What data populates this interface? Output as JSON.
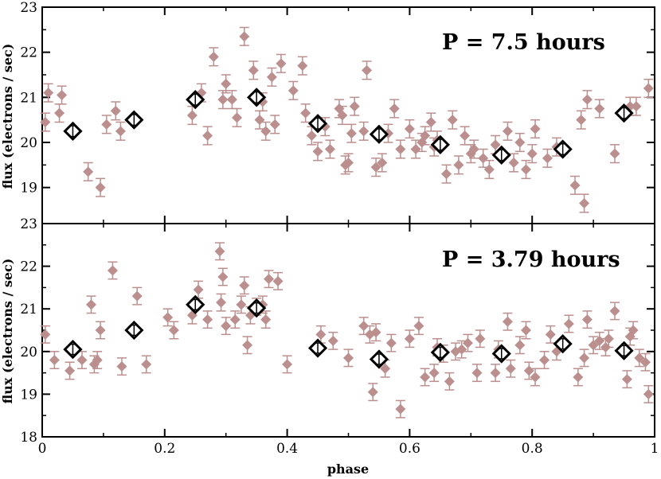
{
  "chart_data": [
    {
      "type": "scatter",
      "title": "P = 7.5 hours",
      "xlabel": "",
      "ylabel": "flux (electrons / sec)",
      "xlim": [
        0,
        1
      ],
      "ylim": [
        18.2,
        23
      ],
      "yticks": [
        19,
        20,
        21,
        22,
        23
      ],
      "xticks": [
        0,
        0.2,
        0.4,
        0.6,
        0.8,
        1
      ],
      "series": [
        {
          "name": "individual measurements",
          "color": "#bc8f8f",
          "marker": "filled-diamond",
          "x": [
            0.005,
            0.01,
            0.028,
            0.032,
            0.075,
            0.095,
            0.105,
            0.12,
            0.128,
            0.245,
            0.26,
            0.27,
            0.28,
            0.295,
            0.3,
            0.31,
            0.318,
            0.33,
            0.345,
            0.355,
            0.36,
            0.365,
            0.375,
            0.38,
            0.39,
            0.41,
            0.425,
            0.43,
            0.44,
            0.45,
            0.462,
            0.47,
            0.485,
            0.49,
            0.495,
            0.5,
            0.505,
            0.51,
            0.525,
            0.53,
            0.545,
            0.555,
            0.565,
            0.575,
            0.585,
            0.6,
            0.61,
            0.62,
            0.625,
            0.635,
            0.64,
            0.645,
            0.66,
            0.67,
            0.68,
            0.69,
            0.7,
            0.705,
            0.72,
            0.73,
            0.74,
            0.76,
            0.77,
            0.78,
            0.79,
            0.8,
            0.805,
            0.825,
            0.84,
            0.87,
            0.88,
            0.885,
            0.89,
            0.91,
            0.935,
            0.96,
            0.97,
            0.99
          ],
          "y": [
            20.45,
            21.1,
            20.65,
            21.05,
            19.35,
            19.0,
            20.4,
            20.7,
            20.25,
            20.6,
            21.1,
            20.15,
            21.9,
            20.95,
            21.3,
            20.95,
            20.55,
            22.35,
            21.6,
            20.5,
            20.9,
            20.25,
            21.45,
            20.4,
            21.75,
            21.15,
            21.7,
            20.65,
            20.15,
            19.8,
            20.35,
            19.85,
            20.75,
            20.6,
            19.5,
            19.55,
            20.2,
            20.8,
            20.25,
            21.6,
            19.45,
            19.55,
            20.2,
            20.75,
            19.85,
            20.3,
            19.85,
            20.0,
            20.15,
            20.45,
            19.9,
            20.05,
            19.3,
            20.5,
            19.5,
            20.15,
            19.75,
            19.85,
            19.65,
            19.4,
            19.95,
            20.25,
            19.55,
            20.0,
            19.4,
            19.75,
            20.3,
            19.65,
            19.9,
            19.05,
            20.5,
            18.65,
            20.95,
            20.75,
            19.75,
            20.8,
            20.8,
            21.2
          ]
        },
        {
          "name": "binned averages",
          "color": "#000000",
          "marker": "open-diamond",
          "x": [
            0.05,
            0.15,
            0.25,
            0.35,
            0.45,
            0.55,
            0.65,
            0.75,
            0.85,
            0.95
          ],
          "y": [
            20.25,
            20.5,
            20.95,
            21.0,
            20.42,
            20.18,
            19.95,
            19.72,
            19.85,
            20.65
          ]
        }
      ]
    },
    {
      "type": "scatter",
      "title": "P = 3.79 hours",
      "xlabel": "phase",
      "ylabel": "flux (electrons / sec)",
      "xlim": [
        0,
        1
      ],
      "ylim": [
        18,
        23
      ],
      "yticks": [
        18,
        19,
        20,
        21,
        22,
        23
      ],
      "xticks": [
        0,
        0.2,
        0.4,
        0.6,
        0.8,
        1
      ],
      "xticklabels": [
        "0",
        "0.2",
        "0.4",
        "0.6",
        "0.8",
        "1"
      ],
      "series": [
        {
          "name": "individual measurements",
          "color": "#bc8f8f",
          "marker": "filled-diamond",
          "x": [
            0.005,
            0.02,
            0.045,
            0.065,
            0.08,
            0.085,
            0.09,
            0.095,
            0.115,
            0.13,
            0.155,
            0.17,
            0.205,
            0.215,
            0.245,
            0.255,
            0.27,
            0.29,
            0.292,
            0.295,
            0.3,
            0.315,
            0.325,
            0.33,
            0.335,
            0.34,
            0.35,
            0.36,
            0.365,
            0.37,
            0.385,
            0.4,
            0.455,
            0.475,
            0.5,
            0.525,
            0.535,
            0.54,
            0.545,
            0.56,
            0.57,
            0.585,
            0.6,
            0.615,
            0.625,
            0.64,
            0.645,
            0.655,
            0.665,
            0.675,
            0.685,
            0.695,
            0.71,
            0.715,
            0.74,
            0.745,
            0.76,
            0.765,
            0.78,
            0.79,
            0.795,
            0.805,
            0.82,
            0.83,
            0.84,
            0.86,
            0.875,
            0.885,
            0.89,
            0.9,
            0.91,
            0.92,
            0.925,
            0.935,
            0.955,
            0.96,
            0.965,
            0.975,
            0.985,
            0.99
          ],
          "y": [
            20.4,
            19.8,
            19.55,
            19.8,
            21.1,
            19.7,
            19.8,
            20.5,
            21.9,
            19.65,
            21.3,
            19.7,
            20.8,
            20.5,
            20.85,
            21.45,
            20.75,
            22.35,
            21.15,
            21.75,
            20.6,
            20.75,
            21.1,
            21.55,
            20.15,
            20.85,
            21.05,
            21.1,
            20.75,
            21.7,
            21.65,
            19.7,
            20.4,
            20.25,
            19.85,
            20.6,
            20.4,
            19.05,
            20.45,
            19.6,
            20.2,
            18.65,
            20.3,
            20.6,
            19.4,
            19.5,
            20.1,
            19.95,
            19.3,
            20.0,
            20.05,
            20.2,
            19.5,
            20.3,
            19.5,
            20.05,
            20.7,
            19.6,
            20.15,
            20.5,
            19.55,
            19.4,
            19.8,
            20.4,
            20.0,
            20.65,
            19.4,
            19.85,
            20.75,
            20.15,
            20.25,
            20.1,
            20.3,
            20.95,
            19.35,
            20.35,
            20.5,
            19.85,
            19.75,
            19.0
          ]
        },
        {
          "name": "binned averages",
          "color": "#000000",
          "marker": "open-diamond",
          "x": [
            0.05,
            0.15,
            0.25,
            0.35,
            0.45,
            0.55,
            0.65,
            0.75,
            0.85,
            0.95
          ],
          "y": [
            20.05,
            20.5,
            21.1,
            21.02,
            20.08,
            19.82,
            19.98,
            19.95,
            20.18,
            20.02
          ]
        }
      ]
    }
  ]
}
